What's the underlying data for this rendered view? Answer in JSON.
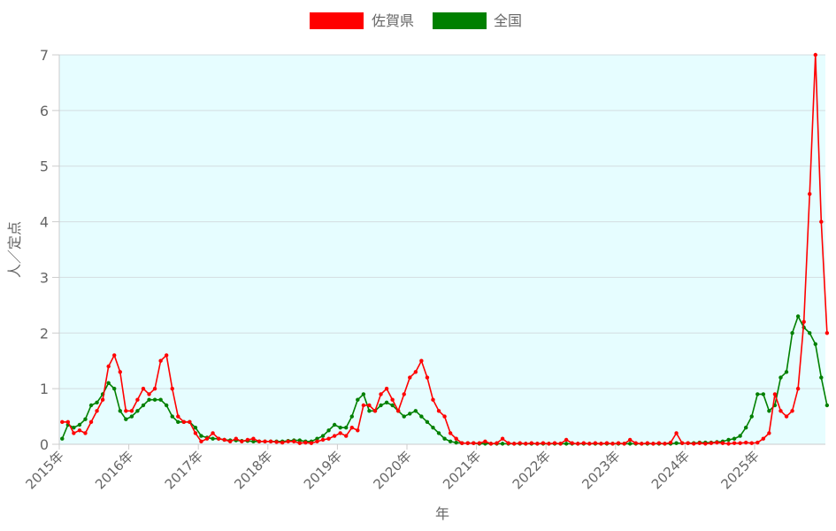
{
  "chart_data": {
    "type": "line",
    "title": "",
    "xlabel": "年",
    "ylabel": "人／定点",
    "ylim": [
      0,
      7
    ],
    "yticks": [
      "0",
      "1",
      "2",
      "3",
      "4",
      "5",
      "6",
      "7"
    ],
    "xticks": [
      "2015年",
      "2016年",
      "2017年",
      "2018年",
      "2019年",
      "2020年",
      "2021年",
      "2022年",
      "2023年",
      "2024年",
      "2025年"
    ],
    "grid": true,
    "legend_placement": "top",
    "plot_background": "#e6fdff",
    "series": [
      {
        "name": "佐賀県",
        "color": "#ff0000",
        "monthly": {
          "2015": [
            0.4,
            0.4,
            0.2,
            0.25,
            0.2,
            0.4,
            0.6,
            0.8,
            1.4,
            1.6,
            1.3,
            0.6
          ],
          "2016": [
            0.6,
            0.8,
            1.0,
            0.9,
            1.0,
            1.5,
            1.6,
            1.0,
            0.5,
            0.4,
            0.4,
            0.2
          ],
          "2017": [
            0.05,
            0.1,
            0.2,
            0.1,
            0.08,
            0.05,
            0.1,
            0.05,
            0.08,
            0.1,
            0.05,
            0.05
          ],
          "2018": [
            0.05,
            0.04,
            0.03,
            0.05,
            0.05,
            0.02,
            0.03,
            0.02,
            0.05,
            0.08,
            0.1,
            0.15
          ],
          "2019": [
            0.2,
            0.15,
            0.3,
            0.25,
            0.7,
            0.7,
            0.6,
            0.9,
            1.0,
            0.8,
            0.6,
            0.9
          ],
          "2020": [
            1.2,
            1.3,
            1.5,
            1.2,
            0.8,
            0.6,
            0.5,
            0.2,
            0.1,
            0.02,
            0.02,
            0.02
          ],
          "2021": [
            0.02,
            0.05,
            0.01,
            0.02,
            0.1,
            0.02,
            0.01,
            0.02,
            0.01,
            0.02,
            0.01,
            0.02
          ],
          "2022": [
            0.01,
            0.02,
            0.01,
            0.08,
            0.02,
            0.01,
            0.02,
            0.01,
            0.02,
            0.01,
            0.02,
            0.01
          ],
          "2023": [
            0.02,
            0.01,
            0.08,
            0.02,
            0.01,
            0.02,
            0.01,
            0.02,
            0.01,
            0.03,
            0.2,
            0.02
          ],
          "2024": [
            0.02,
            0.01,
            0.02,
            0.01,
            0.02,
            0.03,
            0.02,
            0.01,
            0.02,
            0.02,
            0.03,
            0.02
          ],
          "2025": [
            0.03,
            0.1,
            0.2,
            0.9,
            0.6,
            0.5,
            0.6,
            1.0,
            2.2,
            4.5,
            7.0,
            4.0
          ],
          "2026": [
            2.0
          ]
        }
      },
      {
        "name": "全国",
        "color": "#008000",
        "monthly": {
          "2015": [
            0.1,
            0.35,
            0.3,
            0.35,
            0.45,
            0.7,
            0.75,
            0.9,
            1.1,
            1.0,
            0.6,
            0.45
          ],
          "2016": [
            0.5,
            0.6,
            0.7,
            0.8,
            0.8,
            0.8,
            0.7,
            0.5,
            0.4,
            0.4,
            0.4,
            0.3
          ],
          "2017": [
            0.15,
            0.12,
            0.1,
            0.1,
            0.08,
            0.07,
            0.07,
            0.06,
            0.06,
            0.05,
            0.05,
            0.05
          ],
          "2018": [
            0.05,
            0.05,
            0.05,
            0.06,
            0.07,
            0.07,
            0.05,
            0.05,
            0.1,
            0.15,
            0.25,
            0.35
          ],
          "2019": [
            0.3,
            0.3,
            0.5,
            0.8,
            0.9,
            0.6,
            0.6,
            0.7,
            0.75,
            0.7,
            0.6,
            0.5
          ],
          "2020": [
            0.55,
            0.6,
            0.5,
            0.4,
            0.3,
            0.2,
            0.1,
            0.05,
            0.03,
            0.02,
            0.02,
            0.02
          ],
          "2021": [
            0.01,
            0.01,
            0.01,
            0.01,
            0.01,
            0.01,
            0.01,
            0.01,
            0.01,
            0.01,
            0.01,
            0.01
          ],
          "2022": [
            0.01,
            0.01,
            0.01,
            0.01,
            0.01,
            0.01,
            0.01,
            0.01,
            0.01,
            0.01,
            0.01,
            0.01
          ],
          "2023": [
            0.01,
            0.01,
            0.01,
            0.01,
            0.01,
            0.01,
            0.01,
            0.01,
            0.01,
            0.01,
            0.02,
            0.02
          ],
          "2024": [
            0.02,
            0.02,
            0.03,
            0.03,
            0.03,
            0.04,
            0.05,
            0.08,
            0.1,
            0.15,
            0.3,
            0.5
          ],
          "2025": [
            0.9,
            0.9,
            0.6,
            0.7,
            1.2,
            1.3,
            2.0,
            2.3,
            2.1,
            2.0,
            1.8,
            1.2
          ],
          "2026": [
            0.7
          ]
        }
      }
    ]
  }
}
